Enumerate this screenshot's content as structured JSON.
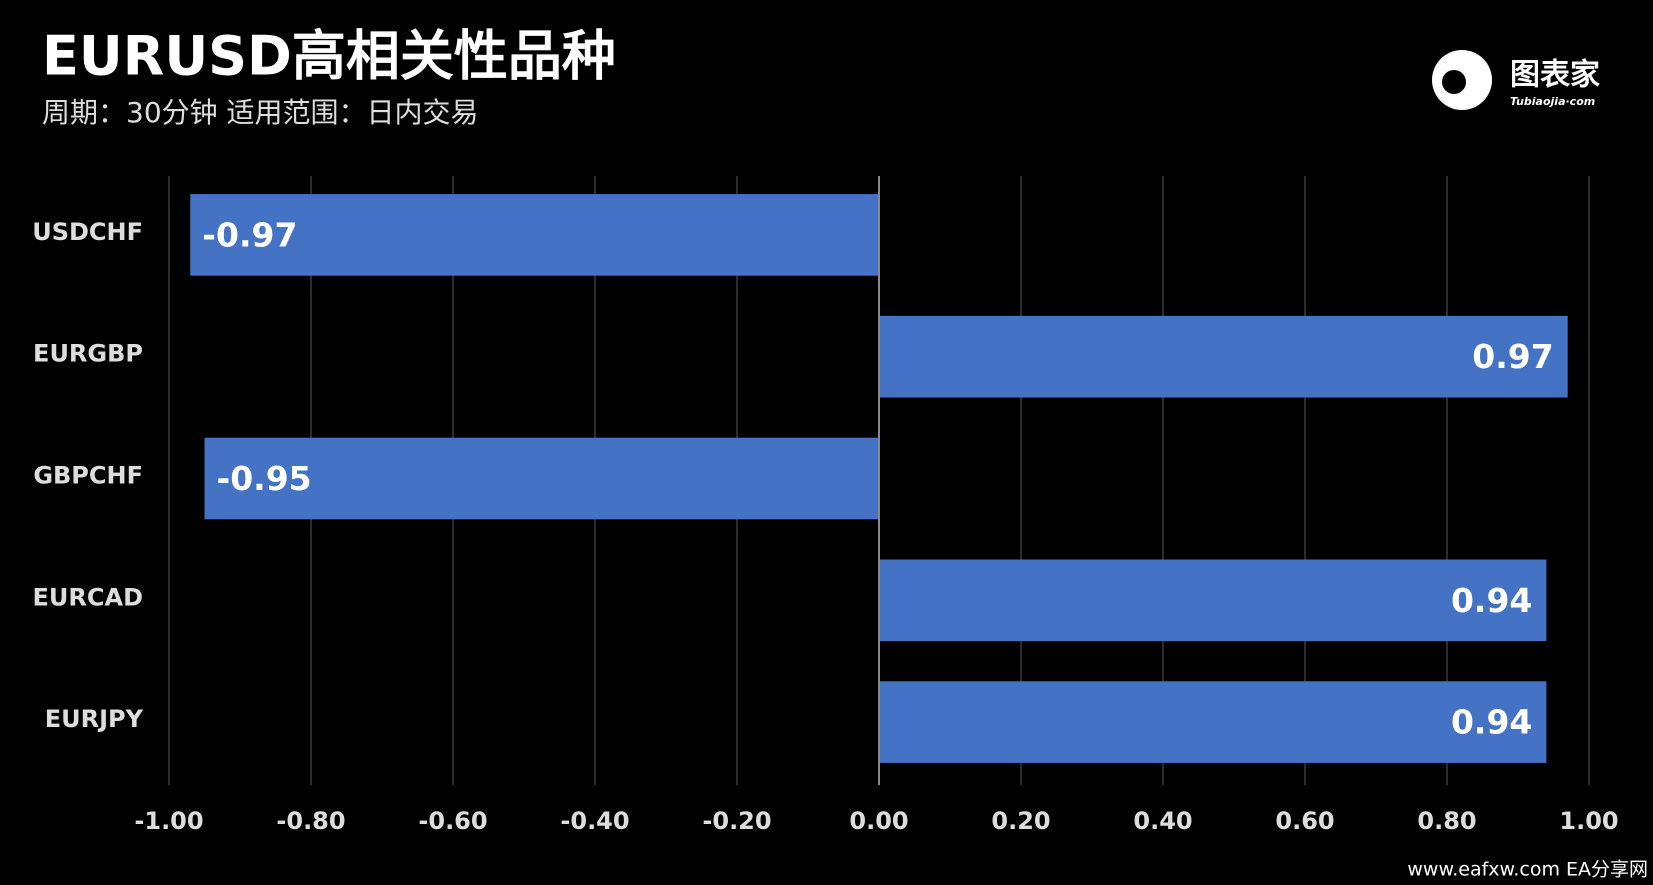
{
  "chart_data": {
    "type": "hbar",
    "title": "EURUSD高相关性品种",
    "subtitle": "周期：30分钟  适用范围：日内交易",
    "logo": "图表家",
    "logo_subtitle": "Tubiaojia·com",
    "source": "www.eafxw.com   EA分享网",
    "categories": [
      "USDCHF",
      "EURGBP",
      "GBPCHF",
      "EURCAD",
      "EURJPY"
    ],
    "values": [
      -0.97,
      0.97,
      -0.95,
      0.94,
      0.94
    ],
    "color": "#4472c4",
    "xlim": [
      -1,
      1
    ],
    "xticks": [
      {
        "value": -1,
        "label": "-1.00"
      },
      {
        "value": -0.8,
        "label": "-0.80"
      },
      {
        "value": -0.6,
        "label": "-0.60"
      },
      {
        "value": -0.4,
        "label": "-0.40"
      },
      {
        "value": -0.2,
        "label": "-0.20"
      },
      {
        "value": 0,
        "label": "0.00"
      },
      {
        "value": 0.2,
        "label": "0.20"
      },
      {
        "value": 0.4,
        "label": "0.40"
      },
      {
        "value": 0.6,
        "label": "0.60"
      },
      {
        "value": 0.8,
        "label": "0.80"
      },
      {
        "value": 1,
        "label": "1.00"
      }
    ],
    "grid": true
  }
}
